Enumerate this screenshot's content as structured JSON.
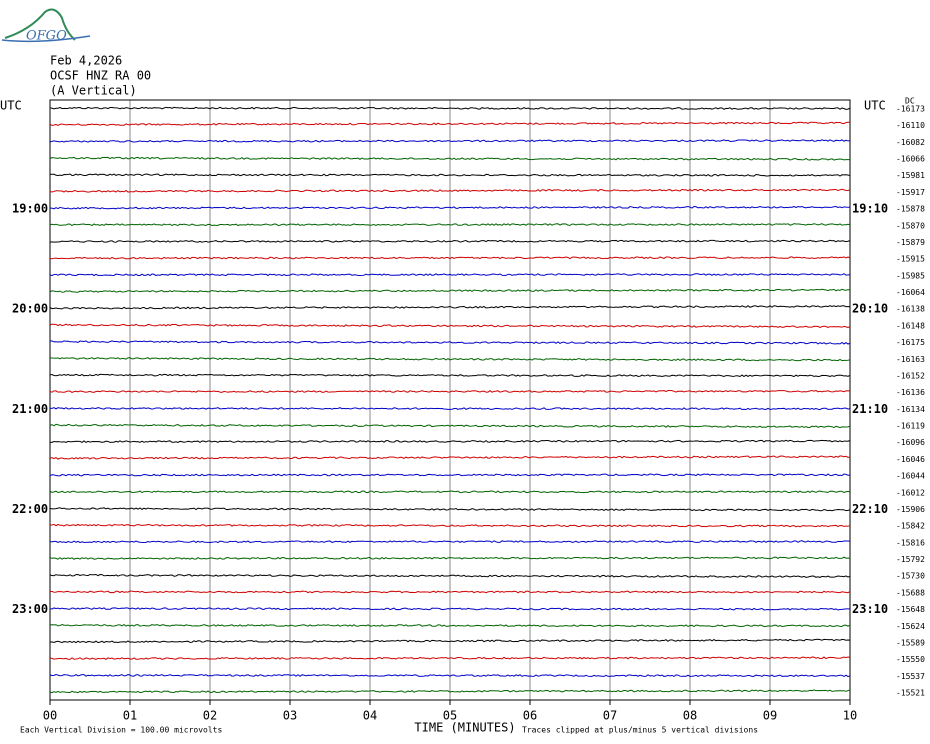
{
  "header": {
    "logo": "OFGO",
    "date": "Feb 4,2026",
    "station": "OCSF HNZ RA 00",
    "component": "(A Vertical)"
  },
  "left_axis": {
    "title": "UTC",
    "labels": [
      {
        "row": 6,
        "text": "19:00"
      },
      {
        "row": 12,
        "text": "20:00"
      },
      {
        "row": 18,
        "text": "21:00"
      },
      {
        "row": 24,
        "text": "22:00"
      },
      {
        "row": 30,
        "text": "23:00"
      }
    ]
  },
  "right_axis": {
    "title": "UTC",
    "labels": [
      {
        "row": 6,
        "text": "19:10"
      },
      {
        "row": 12,
        "text": "20:10"
      },
      {
        "row": 18,
        "text": "21:10"
      },
      {
        "row": 24,
        "text": "22:10"
      },
      {
        "row": 30,
        "text": "23:10"
      }
    ]
  },
  "offsets": {
    "title": "DC",
    "values": [
      -16173,
      -16110,
      -16082,
      -16066,
      -15981,
      -15917,
      -15878,
      -15870,
      -15879,
      -15915,
      -15985,
      -16064,
      -16138,
      -16148,
      -16175,
      -16163,
      -16152,
      -16136,
      -16134,
      -16119,
      -16096,
      -16046,
      -16044,
      -16012,
      -15906,
      -15842,
      -15816,
      -15792,
      -15730,
      -15688,
      -15648,
      -15624,
      -15589,
      -15550,
      -15537,
      -15521
    ]
  },
  "trace_colors": [
    "#000000",
    "#d00000",
    "#0000c8",
    "#006400"
  ],
  "x_axis": {
    "title": "TIME (MINUTES)",
    "ticks": [
      "00",
      "01",
      "02",
      "03",
      "04",
      "05",
      "06",
      "07",
      "08",
      "09",
      "10"
    ]
  },
  "footer": {
    "scale": "Each Vertical Division =  100.00 microvolts",
    "clip": "Traces clipped at plus/minus 5 vertical divisions"
  }
}
